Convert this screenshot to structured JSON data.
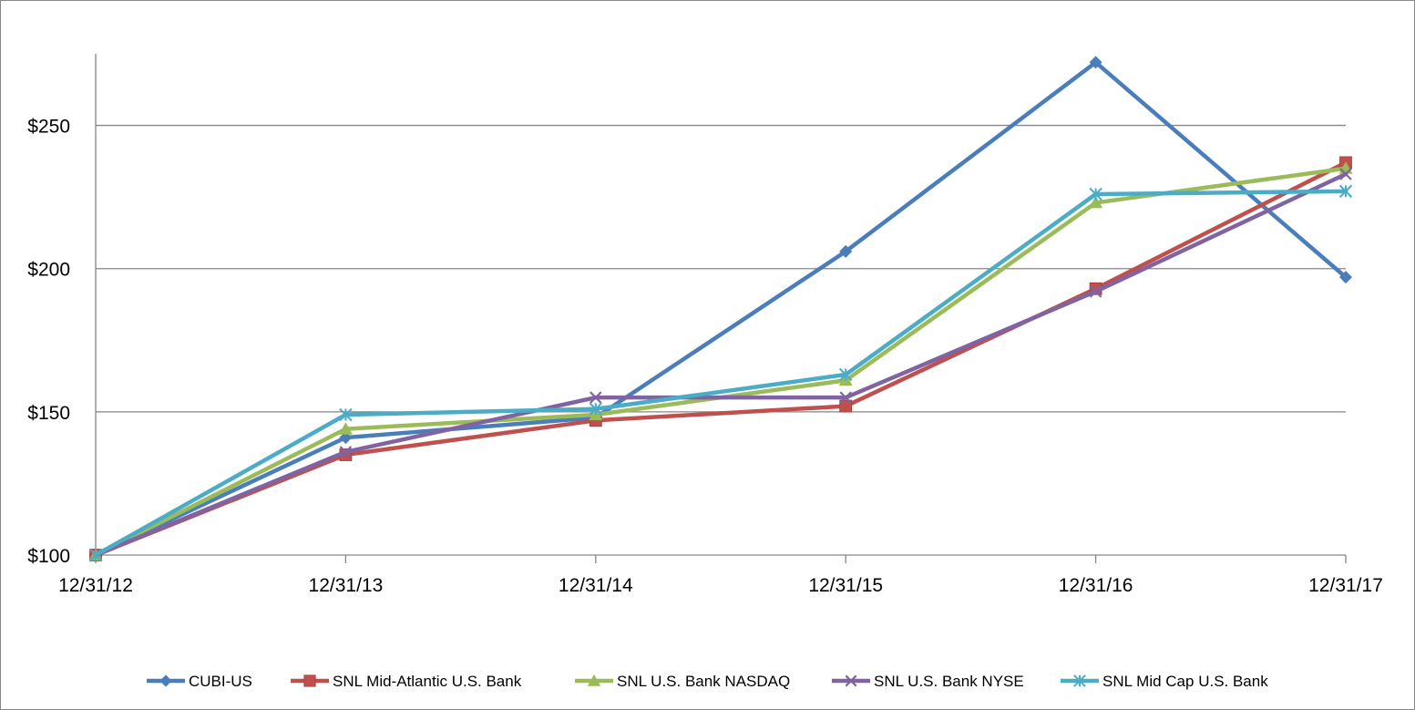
{
  "chart_data": {
    "type": "line",
    "title": "",
    "xlabel": "",
    "ylabel": "",
    "categories": [
      "12/31/12",
      "12/31/13",
      "12/31/14",
      "12/31/15",
      "12/31/16",
      "12/31/17"
    ],
    "ylim": [
      100,
      275
    ],
    "yticks": [
      100,
      150,
      200,
      250
    ],
    "ytick_labels": [
      "$100",
      "$150",
      "$200",
      "$250"
    ],
    "grid": true,
    "legend_position": "bottom",
    "series": [
      {
        "name": "CUBI-US",
        "color": "#4a7ebb",
        "marker": "diamond",
        "values": [
          100,
          141,
          148,
          206,
          272,
          197
        ]
      },
      {
        "name": "SNL Mid-Atlantic U.S. Bank",
        "color": "#c0504d",
        "marker": "square",
        "values": [
          100,
          135,
          147,
          152,
          193,
          237
        ]
      },
      {
        "name": "SNL U.S. Bank NASDAQ",
        "color": "#9bbb59",
        "marker": "triangle",
        "values": [
          100,
          144,
          149,
          161,
          223,
          235
        ]
      },
      {
        "name": "SNL U.S. Bank NYSE",
        "color": "#8064a2",
        "marker": "x",
        "values": [
          100,
          136,
          155,
          155,
          192,
          233
        ]
      },
      {
        "name": "SNL Mid Cap U.S. Bank",
        "color": "#4bacc6",
        "marker": "asterisk",
        "values": [
          100,
          149,
          151,
          163,
          226,
          227
        ]
      }
    ]
  }
}
